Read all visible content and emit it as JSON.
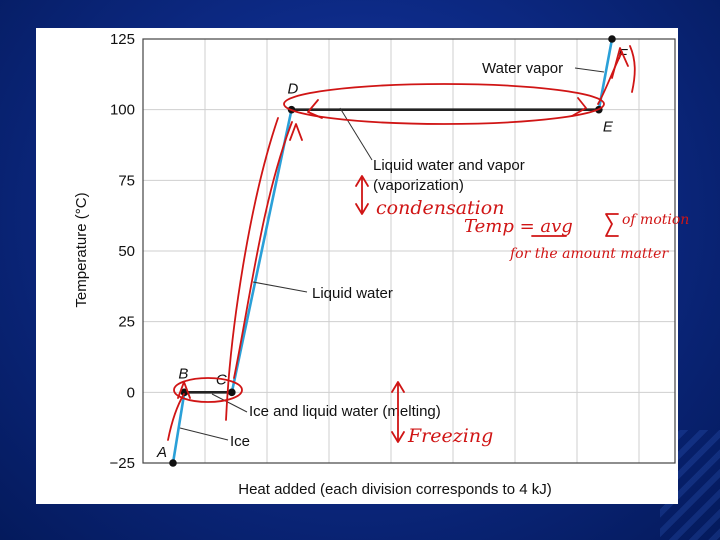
{
  "chart_data": {
    "type": "line",
    "title": "",
    "xlabel": "Heat added (each division corresponds to 4 kJ)",
    "ylabel": "Temperature (°C)",
    "xlim": [
      0,
      56
    ],
    "ylim": [
      -25,
      125
    ],
    "yticks": [
      125,
      100,
      75,
      50,
      25,
      0,
      -25
    ],
    "grid": true,
    "series": [
      {
        "segments": [
          {
            "from": "A",
            "to": "B",
            "x": [
              0,
              1.3
            ],
            "y": [
              -25,
              0
            ],
            "color": "#2aa0d8"
          },
          {
            "from": "B",
            "to": "C",
            "x": [
              1.3,
              6.7
            ],
            "y": [
              0,
              0
            ],
            "color": "#222222"
          },
          {
            "from": "C",
            "to": "D",
            "x": [
              6.7,
              13.5
            ],
            "y": [
              0,
              100
            ],
            "color": "#2aa0d8"
          },
          {
            "from": "D",
            "to": "E",
            "x": [
              13.5,
              48.5
            ],
            "y": [
              100,
              100
            ],
            "color": "#222222"
          },
          {
            "from": "E",
            "to": "F",
            "x": [
              48.5,
              50
            ],
            "y": [
              100,
              125
            ],
            "color": "#2aa0d8"
          }
        ]
      }
    ],
    "points": [
      {
        "label": "A",
        "x": 0,
        "y": -25
      },
      {
        "label": "B",
        "x": 1.3,
        "y": 0
      },
      {
        "label": "C",
        "x": 6.7,
        "y": 0
      },
      {
        "label": "D",
        "x": 13.5,
        "y": 100
      },
      {
        "label": "E",
        "x": 48.5,
        "y": 100
      },
      {
        "label": "F",
        "x": 50,
        "y": 125
      }
    ],
    "annotations": [
      {
        "text": "Water vapor"
      },
      {
        "text": "Liquid water and vapor"
      },
      {
        "text": "(vaporization)"
      },
      {
        "text": "Liquid water"
      },
      {
        "text": "Ice and liquid water (melting)"
      },
      {
        "text": "Ice"
      }
    ]
  },
  "handwritten_notes": {
    "condensation": "condensation",
    "temp_formula_1": "Temp = avg",
    "temp_formula_2": "of motion",
    "temp_formula_3": "for the amount matter",
    "freezing": "Freezing"
  },
  "colors": {
    "background": "#0d2a86",
    "panel": "#ffffff",
    "heating_line": "#2aa0d8",
    "plateau_line": "#222222",
    "ink": "#d01515"
  }
}
